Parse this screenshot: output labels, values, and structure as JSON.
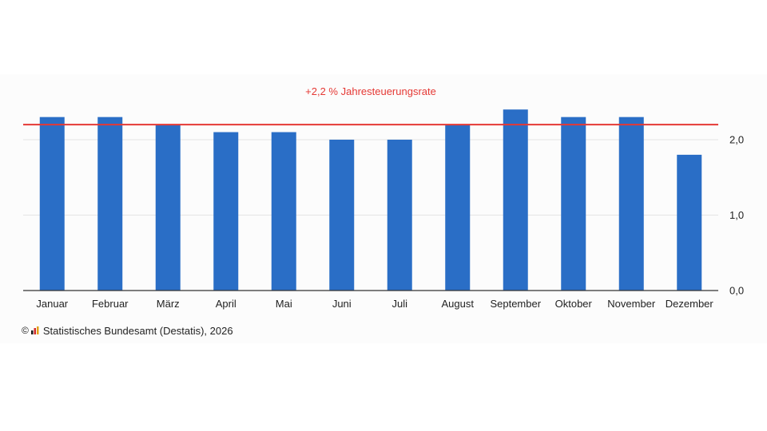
{
  "chart_data": {
    "type": "bar",
    "categories": [
      "Januar",
      "Februar",
      "März",
      "April",
      "Mai",
      "Juni",
      "Juli",
      "August",
      "September",
      "Oktober",
      "November",
      "Dezember"
    ],
    "series": [
      {
        "values": [
          2.3,
          2.3,
          2.2,
          2.1,
          2.1,
          2.0,
          2.0,
          2.2,
          2.4,
          2.3,
          2.3,
          1.8
        ]
      }
    ],
    "reference_line": {
      "value": 2.2,
      "label": "+2,2 % Jahresteuerungsrate"
    },
    "yticks": [
      {
        "value": 0,
        "label": "0,0"
      },
      {
        "value": 1,
        "label": "1,0"
      },
      {
        "value": 2,
        "label": "2,0"
      }
    ],
    "ylim": [
      0,
      2.6
    ],
    "y_axis_side": "right",
    "grid": true,
    "colors": {
      "bar": "#2a6ec6",
      "reference": "#e53935",
      "grid": "#e4e4e4",
      "axis": "#333333"
    }
  },
  "source": {
    "copyright_symbol": "©",
    "logo_icon": "destatis-logo-icon",
    "text": "Statistisches Bundesamt (Destatis), 2026"
  }
}
